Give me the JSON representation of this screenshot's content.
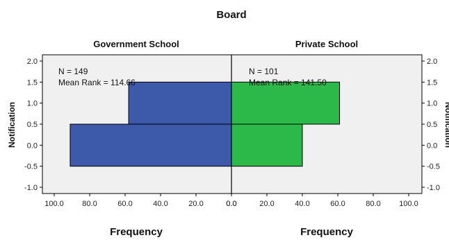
{
  "chart_data": {
    "type": "bar",
    "orientation": "horizontal-population-pyramid",
    "title": "Board",
    "ylabel": "Notification",
    "ylim": [
      -1.0,
      2.0
    ],
    "yticks": [
      "2.0",
      "1.5",
      "1.0",
      "0.5",
      "0.0",
      "-0.5",
      "-1.0"
    ],
    "xlim": [
      0,
      100
    ],
    "xticks_left": [
      "100.0",
      "80.0",
      "60.0",
      "40.0",
      "20.0",
      "0.0"
    ],
    "xticks_right": [
      "0.0",
      "20.0",
      "40.0",
      "60.0",
      "80.0",
      "100.0"
    ],
    "grid": false,
    "panels": [
      {
        "name": "Government School",
        "xlabel": "Frequency",
        "color": "#3c59aa",
        "n_text": "N = 149",
        "mean_rank_text": "Mean Rank = 114.66",
        "bars": [
          {
            "y0": -0.5,
            "y1": 0.5,
            "value": 91
          },
          {
            "y0": 0.5,
            "y1": 1.5,
            "value": 58
          }
        ]
      },
      {
        "name": "Private School",
        "xlabel": "Frequency",
        "color": "#2db84a",
        "n_text": "N = 101",
        "mean_rank_text": "Mean Rank = 141.50",
        "bars": [
          {
            "y0": -0.5,
            "y1": 0.5,
            "value": 40
          },
          {
            "y0": 0.5,
            "y1": 1.5,
            "value": 61
          }
        ]
      }
    ]
  }
}
